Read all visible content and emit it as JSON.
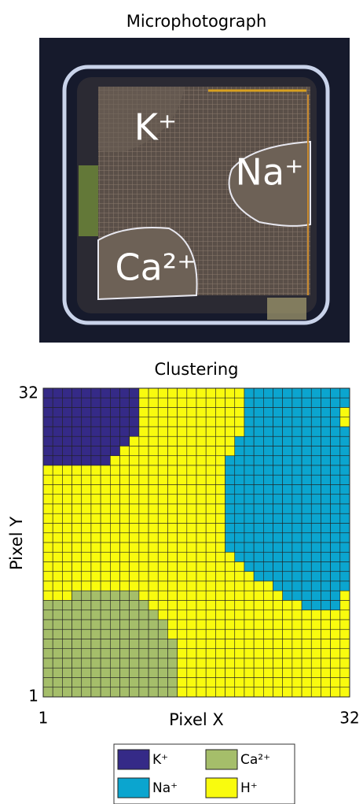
{
  "image": {
    "title": "Microphotograph",
    "labels": [
      "K⁺",
      "Na⁺",
      "Ca²⁺"
    ]
  },
  "chart_data": {
    "type": "heatmap",
    "title": "Clustering",
    "x_label": "Pixel X",
    "y_label": "Pixel Y",
    "xlim": [
      1,
      32
    ],
    "ylim": [
      1,
      32
    ],
    "xticks": [
      1,
      32
    ],
    "yticks": [
      1,
      32
    ],
    "classes": [
      {
        "name": "K⁺",
        "color": "#352a87"
      },
      {
        "name": "Na⁺",
        "color": "#0ba5cf"
      },
      {
        "name": "Ca²⁺",
        "color": "#a5be6a"
      },
      {
        "name": "H⁺",
        "color": "#f9fb0e"
      }
    ],
    "values": [
      [
        0,
        0,
        0,
        0,
        0,
        0,
        0,
        0,
        0,
        0,
        3,
        3,
        3,
        3,
        3,
        3,
        3,
        3,
        3,
        3,
        3,
        1,
        1,
        1,
        1,
        1,
        1,
        1,
        1,
        1,
        1,
        1
      ],
      [
        0,
        0,
        0,
        0,
        0,
        0,
        0,
        0,
        0,
        0,
        3,
        3,
        3,
        3,
        3,
        3,
        3,
        3,
        3,
        3,
        3,
        1,
        1,
        1,
        1,
        1,
        1,
        1,
        1,
        1,
        1,
        1
      ],
      [
        0,
        0,
        0,
        0,
        0,
        0,
        0,
        0,
        0,
        0,
        3,
        3,
        3,
        3,
        3,
        3,
        3,
        3,
        3,
        3,
        3,
        1,
        1,
        1,
        1,
        1,
        1,
        1,
        1,
        1,
        1,
        3
      ],
      [
        0,
        0,
        0,
        0,
        0,
        0,
        0,
        0,
        0,
        0,
        3,
        3,
        3,
        3,
        3,
        3,
        3,
        3,
        3,
        3,
        3,
        1,
        1,
        1,
        1,
        1,
        1,
        1,
        1,
        1,
        1,
        3
      ],
      [
        0,
        0,
        0,
        0,
        0,
        0,
        0,
        0,
        0,
        0,
        3,
        3,
        3,
        3,
        3,
        3,
        3,
        3,
        3,
        3,
        3,
        1,
        1,
        1,
        1,
        1,
        1,
        1,
        1,
        1,
        1,
        1
      ],
      [
        0,
        0,
        0,
        0,
        0,
        0,
        0,
        0,
        0,
        3,
        3,
        3,
        3,
        3,
        3,
        3,
        3,
        3,
        3,
        3,
        1,
        1,
        1,
        1,
        1,
        1,
        1,
        1,
        1,
        1,
        1,
        1
      ],
      [
        0,
        0,
        0,
        0,
        0,
        0,
        0,
        0,
        3,
        3,
        3,
        3,
        3,
        3,
        3,
        3,
        3,
        3,
        3,
        3,
        1,
        1,
        1,
        1,
        1,
        1,
        1,
        1,
        1,
        1,
        1,
        1
      ],
      [
        0,
        0,
        0,
        0,
        0,
        0,
        0,
        3,
        3,
        3,
        3,
        3,
        3,
        3,
        3,
        3,
        3,
        3,
        3,
        1,
        1,
        1,
        1,
        1,
        1,
        1,
        1,
        1,
        1,
        1,
        1,
        1
      ],
      [
        3,
        3,
        3,
        3,
        3,
        3,
        3,
        3,
        3,
        3,
        3,
        3,
        3,
        3,
        3,
        3,
        3,
        3,
        3,
        1,
        1,
        1,
        1,
        1,
        1,
        1,
        1,
        1,
        1,
        1,
        1,
        1
      ],
      [
        3,
        3,
        3,
        3,
        3,
        3,
        3,
        3,
        3,
        3,
        3,
        3,
        3,
        3,
        3,
        3,
        3,
        3,
        3,
        1,
        1,
        1,
        1,
        1,
        1,
        1,
        1,
        1,
        1,
        1,
        1,
        1
      ],
      [
        3,
        3,
        3,
        3,
        3,
        3,
        3,
        3,
        3,
        3,
        3,
        3,
        3,
        3,
        3,
        3,
        3,
        3,
        3,
        1,
        1,
        1,
        1,
        1,
        1,
        1,
        1,
        1,
        1,
        1,
        1,
        1
      ],
      [
        3,
        3,
        3,
        3,
        3,
        3,
        3,
        3,
        3,
        3,
        3,
        3,
        3,
        3,
        3,
        3,
        3,
        3,
        3,
        1,
        1,
        1,
        1,
        1,
        1,
        1,
        1,
        1,
        1,
        1,
        1,
        1
      ],
      [
        3,
        3,
        3,
        3,
        3,
        3,
        3,
        3,
        3,
        3,
        3,
        3,
        3,
        3,
        3,
        3,
        3,
        3,
        3,
        1,
        1,
        1,
        1,
        1,
        1,
        1,
        1,
        1,
        1,
        1,
        1,
        1
      ],
      [
        3,
        3,
        3,
        3,
        3,
        3,
        3,
        3,
        3,
        3,
        3,
        3,
        3,
        3,
        3,
        3,
        3,
        3,
        3,
        1,
        1,
        1,
        1,
        1,
        1,
        1,
        1,
        1,
        1,
        1,
        1,
        1
      ],
      [
        3,
        3,
        3,
        3,
        3,
        3,
        3,
        3,
        3,
        3,
        3,
        3,
        3,
        3,
        3,
        3,
        3,
        3,
        3,
        1,
        1,
        1,
        1,
        1,
        1,
        1,
        1,
        1,
        1,
        1,
        1,
        1
      ],
      [
        3,
        3,
        3,
        3,
        3,
        3,
        3,
        3,
        3,
        3,
        3,
        3,
        3,
        3,
        3,
        3,
        3,
        3,
        3,
        1,
        1,
        1,
        1,
        1,
        1,
        1,
        1,
        1,
        1,
        1,
        1,
        1
      ],
      [
        3,
        3,
        3,
        3,
        3,
        3,
        3,
        3,
        3,
        3,
        3,
        3,
        3,
        3,
        3,
        3,
        3,
        3,
        3,
        1,
        1,
        1,
        1,
        1,
        1,
        1,
        1,
        1,
        1,
        1,
        1,
        1
      ],
      [
        3,
        3,
        3,
        3,
        3,
        3,
        3,
        3,
        3,
        3,
        3,
        3,
        3,
        3,
        3,
        3,
        3,
        3,
        3,
        3,
        1,
        1,
        1,
        1,
        1,
        1,
        1,
        1,
        1,
        1,
        1,
        1
      ],
      [
        3,
        3,
        3,
        3,
        3,
        3,
        3,
        3,
        3,
        3,
        3,
        3,
        3,
        3,
        3,
        3,
        3,
        3,
        3,
        3,
        3,
        1,
        1,
        1,
        1,
        1,
        1,
        1,
        1,
        1,
        1,
        1
      ],
      [
        3,
        3,
        3,
        3,
        3,
        3,
        3,
        3,
        3,
        3,
        3,
        3,
        3,
        3,
        3,
        3,
        3,
        3,
        3,
        3,
        3,
        3,
        1,
        1,
        1,
        1,
        1,
        1,
        1,
        1,
        1,
        1
      ],
      [
        3,
        3,
        3,
        3,
        3,
        3,
        3,
        3,
        3,
        3,
        3,
        3,
        3,
        3,
        3,
        3,
        3,
        3,
        3,
        3,
        3,
        3,
        3,
        3,
        1,
        1,
        1,
        1,
        1,
        1,
        1,
        1
      ],
      [
        3,
        3,
        3,
        2,
        2,
        2,
        2,
        2,
        2,
        2,
        3,
        3,
        3,
        3,
        3,
        3,
        3,
        3,
        3,
        3,
        3,
        3,
        3,
        3,
        3,
        1,
        1,
        1,
        1,
        1,
        1,
        3
      ],
      [
        2,
        2,
        2,
        2,
        2,
        2,
        2,
        2,
        2,
        2,
        2,
        3,
        3,
        3,
        3,
        3,
        3,
        3,
        3,
        3,
        3,
        3,
        3,
        3,
        3,
        3,
        3,
        1,
        1,
        1,
        1,
        3
      ],
      [
        2,
        2,
        2,
        2,
        2,
        2,
        2,
        2,
        2,
        2,
        2,
        2,
        3,
        3,
        3,
        3,
        3,
        3,
        3,
        3,
        3,
        3,
        3,
        3,
        3,
        3,
        3,
        3,
        3,
        3,
        3,
        3
      ],
      [
        2,
        2,
        2,
        2,
        2,
        2,
        2,
        2,
        2,
        2,
        2,
        2,
        2,
        3,
        3,
        3,
        3,
        3,
        3,
        3,
        3,
        3,
        3,
        3,
        3,
        3,
        3,
        3,
        3,
        3,
        3,
        3
      ],
      [
        2,
        2,
        2,
        2,
        2,
        2,
        2,
        2,
        2,
        2,
        2,
        2,
        2,
        3,
        3,
        3,
        3,
        3,
        3,
        3,
        3,
        3,
        3,
        3,
        3,
        3,
        3,
        3,
        3,
        3,
        3,
        3
      ],
      [
        2,
        2,
        2,
        2,
        2,
        2,
        2,
        2,
        2,
        2,
        2,
        2,
        2,
        2,
        3,
        3,
        3,
        3,
        3,
        3,
        3,
        3,
        3,
        3,
        3,
        3,
        3,
        3,
        3,
        3,
        3,
        3
      ],
      [
        2,
        2,
        2,
        2,
        2,
        2,
        2,
        2,
        2,
        2,
        2,
        2,
        2,
        2,
        3,
        3,
        3,
        3,
        3,
        3,
        3,
        3,
        3,
        3,
        3,
        3,
        3,
        3,
        3,
        3,
        3,
        3
      ],
      [
        2,
        2,
        2,
        2,
        2,
        2,
        2,
        2,
        2,
        2,
        2,
        2,
        2,
        2,
        3,
        3,
        3,
        3,
        3,
        3,
        3,
        3,
        3,
        3,
        3,
        3,
        3,
        3,
        3,
        3,
        3,
        3
      ],
      [
        2,
        2,
        2,
        2,
        2,
        2,
        2,
        2,
        2,
        2,
        2,
        2,
        2,
        2,
        3,
        3,
        3,
        3,
        3,
        3,
        3,
        3,
        3,
        3,
        3,
        3,
        3,
        3,
        3,
        3,
        3,
        3
      ],
      [
        2,
        2,
        2,
        2,
        2,
        2,
        2,
        2,
        2,
        2,
        2,
        2,
        2,
        2,
        3,
        3,
        3,
        3,
        3,
        3,
        3,
        3,
        3,
        3,
        3,
        3,
        3,
        3,
        3,
        3,
        3,
        3
      ],
      [
        2,
        2,
        2,
        2,
        2,
        2,
        2,
        2,
        2,
        2,
        2,
        2,
        2,
        2,
        3,
        3,
        3,
        3,
        3,
        3,
        3,
        3,
        3,
        3,
        3,
        3,
        3,
        3,
        3,
        3,
        3,
        3
      ]
    ]
  }
}
